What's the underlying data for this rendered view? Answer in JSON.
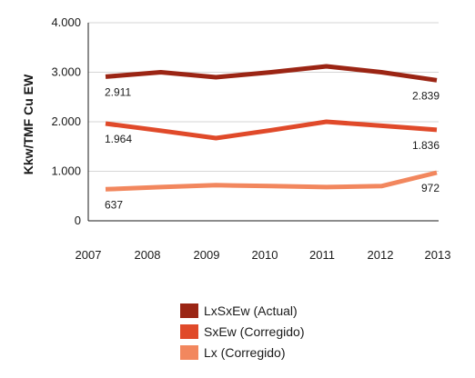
{
  "chart_data": {
    "type": "line",
    "ylabel": "Kkw/TMF Cu EW",
    "xlabel": "",
    "x": [
      "2007",
      "2008",
      "2009",
      "2010",
      "2011",
      "2012",
      "2013"
    ],
    "ylim": [
      0,
      4000
    ],
    "yticks": [
      0,
      1000,
      2000,
      3000,
      4000
    ],
    "ytick_labels": [
      "0",
      "1.000",
      "2.000",
      "3.000",
      "4.000"
    ],
    "grid": "horizontal",
    "legend_position": "bottom",
    "series": [
      {
        "name": "LxSxEw (Actual)",
        "color": "#9b2514",
        "values": [
          2911,
          3000,
          2900,
          3000,
          3120,
          3000,
          2839
        ],
        "labels": [
          {
            "index": 0,
            "text": "2.911"
          },
          {
            "index": 6,
            "text": "2.839"
          }
        ]
      },
      {
        "name": "SxEw (Corregido)",
        "color": "#e04a2a",
        "values": [
          1964,
          1820,
          1670,
          1830,
          2000,
          1920,
          1836
        ],
        "labels": [
          {
            "index": 0,
            "text": "1.964"
          },
          {
            "index": 6,
            "text": "1.836"
          }
        ]
      },
      {
        "name": "Lx (Corregido)",
        "color": "#f2875e",
        "values": [
          637,
          680,
          720,
          700,
          680,
          700,
          972
        ],
        "labels": [
          {
            "index": 0,
            "text": "637"
          },
          {
            "index": 6,
            "text": "972"
          }
        ]
      }
    ]
  }
}
